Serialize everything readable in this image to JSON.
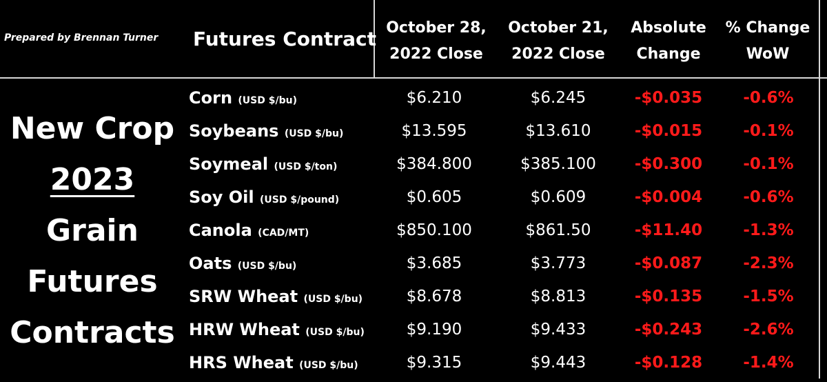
{
  "prepared_by": "Prepared by Brennan Turner",
  "header": {
    "contract": "Futures Contract",
    "col1": [
      "October 28,",
      "2022 Close"
    ],
    "col2": [
      "October 21,",
      "2022 Close"
    ],
    "col3": [
      "Absolute",
      "Change"
    ],
    "col4": [
      "% Change",
      "WoW"
    ]
  },
  "side_title": [
    "New Crop",
    "2023",
    "Grain",
    "Futures",
    "Contracts"
  ],
  "rows": [
    {
      "name": "Corn",
      "unit": "(USD $/bu)",
      "oct28": "$6.210",
      "oct21": "$6.245",
      "abs_change": "-$0.035",
      "pct_change": "-0.6%"
    },
    {
      "name": "Soybeans",
      "unit": "(USD $/bu)",
      "oct28": "$13.595",
      "oct21": "$13.610",
      "abs_change": "-$0.015",
      "pct_change": "-0.1%"
    },
    {
      "name": "Soymeal",
      "unit": "(USD $/ton)",
      "oct28": "$384.800",
      "oct21": "$385.100",
      "abs_change": "-$0.300",
      "pct_change": "-0.1%"
    },
    {
      "name": "Soy Oil",
      "unit": "(USD $/pound)",
      "oct28": "$0.605",
      "oct21": "$0.609",
      "abs_change": "-$0.004",
      "pct_change": "-0.6%"
    },
    {
      "name": "Canola",
      "unit": "(CAD/MT)",
      "oct28": "$850.100",
      "oct21": "$861.50",
      "abs_change": "-$11.40",
      "pct_change": "-1.3%"
    },
    {
      "name": "Oats",
      "unit": "(USD $/bu)",
      "oct28": "$3.685",
      "oct21": "$3.773",
      "abs_change": "-$0.087",
      "pct_change": "-2.3%"
    },
    {
      "name": "SRW Wheat",
      "unit": "(USD $/bu)",
      "oct28": "$8.678",
      "oct21": "$8.813",
      "abs_change": "-$0.135",
      "pct_change": "-1.5%"
    },
    {
      "name": "HRW Wheat",
      "unit": "(USD $/bu)",
      "oct28": "$9.190",
      "oct21": "$9.433",
      "abs_change": "-$0.243",
      "pct_change": "-2.6%"
    },
    {
      "name": "HRS Wheat",
      "unit": "(USD $/bu)",
      "oct28": "$9.315",
      "oct21": "$9.443",
      "abs_change": "-$0.128",
      "pct_change": "-1.4%"
    }
  ],
  "colors": {
    "background": "#000000",
    "text": "#ffffff",
    "negative": "#ff1a1a",
    "divider": "#d8d8d8"
  }
}
